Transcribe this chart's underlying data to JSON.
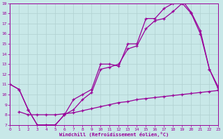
{
  "xlabel": "Windchill (Refroidissement éolien,°C)",
  "background_color": "#c8e8e8",
  "line_color": "#990099",
  "grid_color": "#b0d0d0",
  "xmin": 0,
  "xmax": 23,
  "ymin": 7,
  "ymax": 19,
  "line1_x": [
    0,
    1,
    2,
    3,
    4,
    5,
    6,
    7,
    8,
    9,
    10,
    11,
    12,
    13,
    14,
    15,
    16,
    17,
    18,
    19,
    20,
    21,
    22,
    23
  ],
  "line1_y": [
    11.0,
    10.5,
    8.5,
    7.0,
    7.0,
    7.0,
    8.0,
    9.5,
    10.0,
    10.5,
    13.0,
    13.0,
    12.8,
    15.0,
    15.0,
    17.5,
    17.5,
    18.5,
    19.0,
    19.3,
    18.1,
    16.3,
    12.5,
    10.5
  ],
  "line2_x": [
    0,
    1,
    2,
    3,
    4,
    5,
    6,
    7,
    8,
    9,
    10,
    11,
    12,
    13,
    14,
    15,
    16,
    17,
    18,
    19,
    20,
    21,
    22,
    23
  ],
  "line2_y": [
    11.0,
    10.5,
    8.5,
    7.0,
    7.0,
    7.0,
    8.0,
    8.5,
    9.5,
    10.2,
    12.5,
    12.7,
    13.0,
    14.5,
    14.8,
    16.5,
    17.3,
    17.5,
    18.2,
    19.0,
    18.0,
    16.0,
    12.5,
    10.7
  ],
  "line3_x": [
    1,
    2,
    3,
    4,
    5,
    6,
    7,
    8,
    9,
    10,
    11,
    12,
    13,
    14,
    15,
    16,
    17,
    18,
    19,
    20,
    21,
    22,
    23
  ],
  "line3_y": [
    8.3,
    8.0,
    8.0,
    8.0,
    8.0,
    8.1,
    8.2,
    8.4,
    8.6,
    8.8,
    9.0,
    9.2,
    9.3,
    9.5,
    9.6,
    9.7,
    9.8,
    9.9,
    10.0,
    10.1,
    10.2,
    10.3,
    10.4
  ]
}
